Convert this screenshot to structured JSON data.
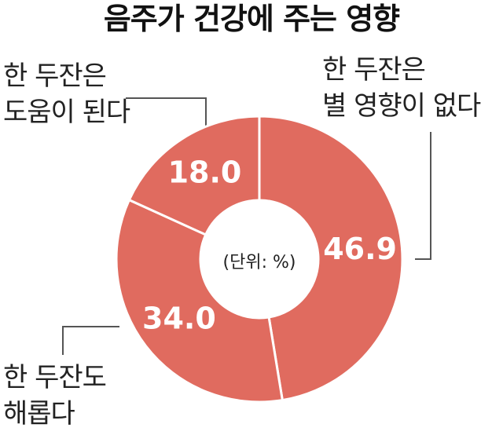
{
  "chart_data": {
    "type": "donut",
    "title": "음주가 건강에 주는 영향",
    "note": "(단위: %)",
    "categories": [
      "한 두잔은\n별 영향이 없다",
      "한 두잔도\n해롭다",
      "한 두잔은\n도움이 된다"
    ],
    "values": [
      46.9,
      34.0,
      18.0
    ],
    "value_labels": [
      "46.9",
      "34.0",
      "18.0"
    ],
    "color": "#e06b5f"
  }
}
